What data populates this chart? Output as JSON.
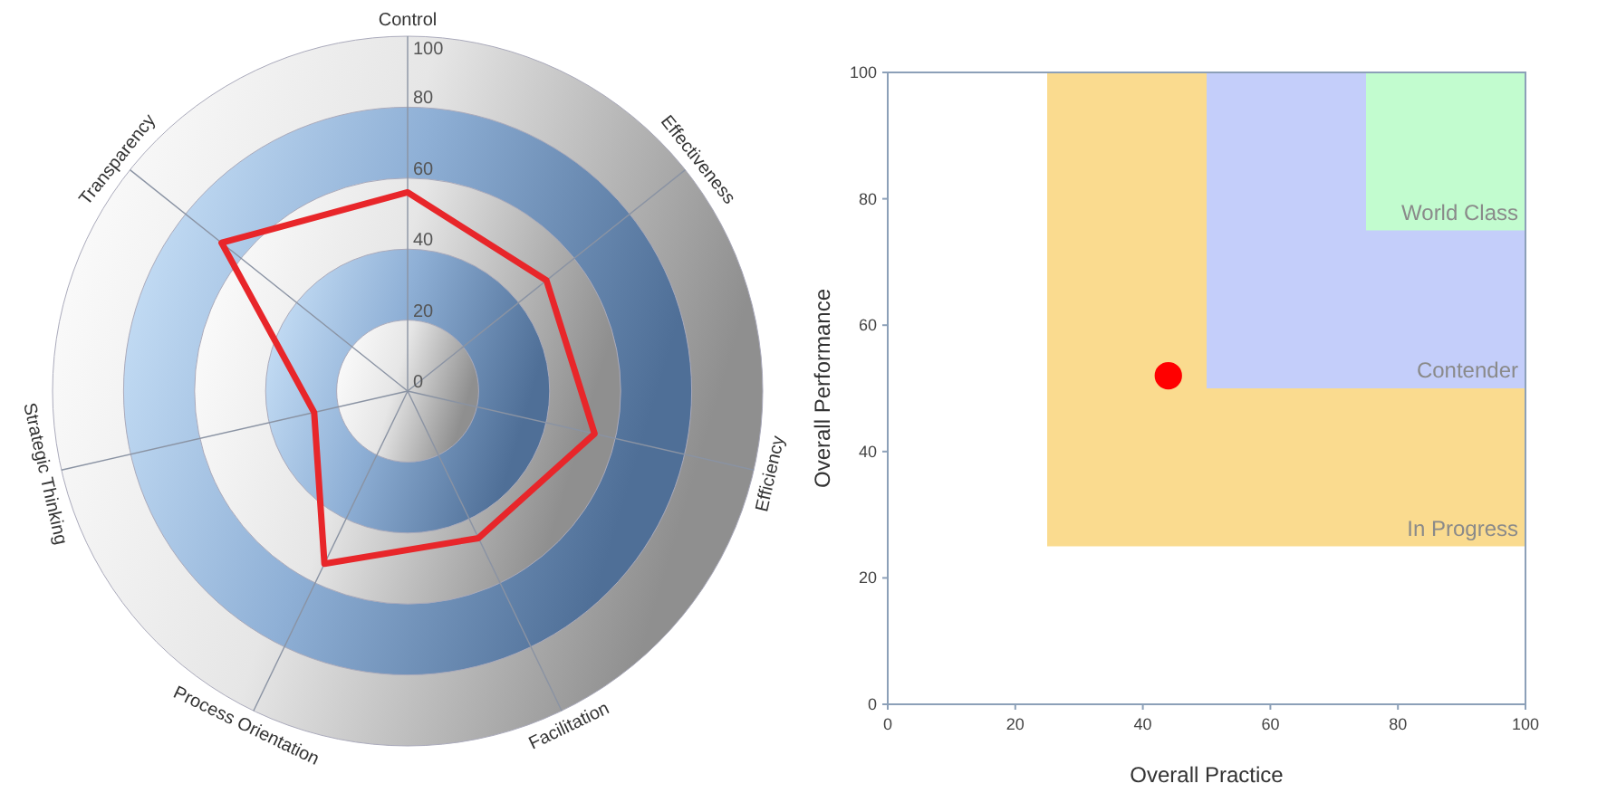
{
  "chart_data": [
    {
      "type": "radar",
      "categories": [
        "Control",
        "Effectiveness",
        "Efficiency",
        "Facilitation",
        "Process Orientation",
        "Strategic Thinking",
        "Transparency"
      ],
      "series": [
        {
          "color": "#e8262a",
          "values": [
            56,
            50,
            54,
            46,
            54,
            27,
            67
          ]
        }
      ],
      "ylim": [
        0,
        100
      ],
      "yticks": [
        0,
        20,
        40,
        60,
        80,
        100
      ],
      "grid": true
    },
    {
      "type": "scatter",
      "xlabel": "Overall Practice",
      "ylabel": "Overall Performance",
      "x": [
        44
      ],
      "series": [
        {
          "color": "#ff0000",
          "values": [
            52
          ]
        }
      ],
      "marker": "circle",
      "xlim": [
        0,
        100
      ],
      "ylim": [
        0,
        100
      ],
      "xticks": [
        0,
        20,
        40,
        60,
        80,
        100
      ],
      "yticks": [
        0,
        20,
        40,
        60,
        80,
        100
      ],
      "bands": [
        {
          "axis": "x",
          "from": 25,
          "to": 100,
          "label": "In Progress",
          "color": "#fadb8f"
        },
        {
          "axis": "x",
          "from": 50,
          "to": 100,
          "label": "Contender",
          "color": "#c4cefa"
        },
        {
          "axis": "x",
          "from": 75,
          "to": 100,
          "label": "World Class",
          "color": "#c2fccf"
        }
      ]
    }
  ]
}
